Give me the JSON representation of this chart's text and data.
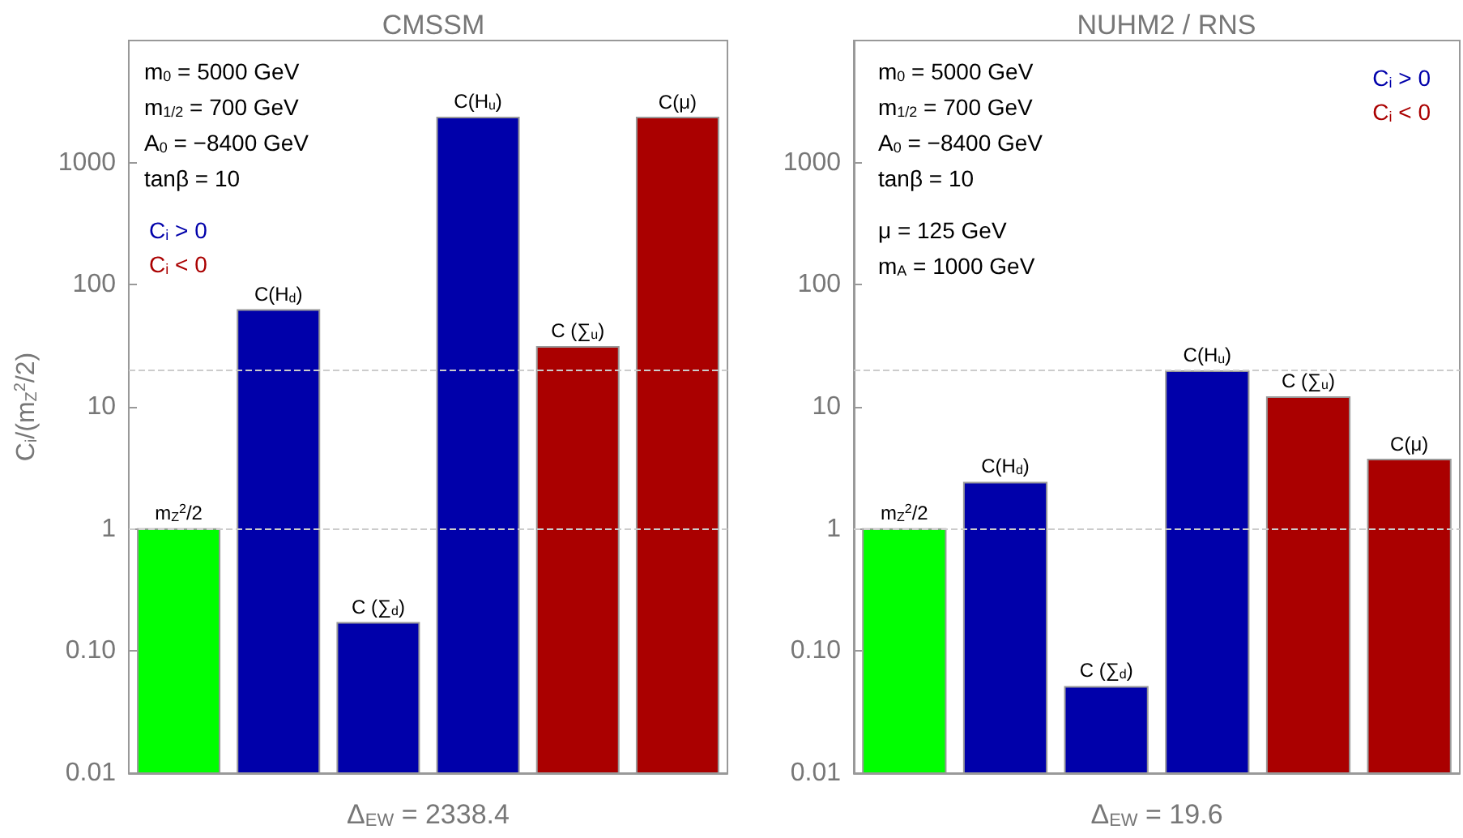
{
  "chart_data": [
    {
      "type": "bar",
      "title": "CMSSM",
      "xlabel": "Δ$_{EW}$ = 2338.4",
      "ylabel": "C$_{i}$/(m$_{Z}$$^{2}$/2)",
      "categories": [
        "m$_{Z}$$^{2}$/2",
        "C(H$_{d}$)",
        "C (∑$_{d}$)",
        "C(H$_{u}$)",
        "C (∑$_{u}$)",
        "C(μ)"
      ],
      "series": [
        {
          "color": "#00ff00",
          "values": [
            1,
            null,
            null,
            null,
            null,
            null
          ]
        },
        {
          "name": "C$_{i}$ > 0",
          "color": "#0000aa",
          "values": [
            null,
            62,
            0.17,
            2338,
            null,
            null
          ]
        },
        {
          "name": "C$_{i}$ < 0",
          "color": "#aa0000",
          "values": [
            null,
            null,
            null,
            null,
            31,
            2338
          ]
        }
      ],
      "log": "y",
      "ylim": [
        0.01,
        10000
      ],
      "yticks": [
        0.01,
        {
          "value": 0.1,
          "label": "0.10"
        },
        1,
        10,
        100,
        1000
      ],
      "tick_labels": "y",
      "ref_lines": [
        {
          "axis": "y",
          "value": 20,
          "line_style": "dashed",
          "color": "#cccccc"
        },
        {
          "axis": "y",
          "value": 1,
          "line_style": "dashed",
          "color": "#cccccc"
        }
      ],
      "annotations": [
        "m$_{0}$ = 5000 GeV",
        "m$_{1/2}$ = 700 GeV",
        "A$_{0}$ = −8400 GeV",
        "tanβ = 10"
      ]
    },
    {
      "type": "bar",
      "title": "NUHM2 / RNS",
      "xlabel": "Δ$_{EW}$ = 19.6",
      "categories": [
        "m$_{Z}$$^{2}$/2",
        "C(H$_{d}$)",
        "C (∑$_{d}$)",
        "C(H$_{u}$)",
        "C (∑$_{u}$)",
        "C(μ)"
      ],
      "series": [
        {
          "color": "#00ff00",
          "values": [
            1,
            null,
            null,
            null,
            null,
            null
          ]
        },
        {
          "name": "C$_{i}$ > 0",
          "color": "#0000aa",
          "values": [
            null,
            2.4,
            0.051,
            19.6,
            null,
            null
          ]
        },
        {
          "name": "C$_{i}$ < 0",
          "color": "#aa0000",
          "values": [
            null,
            null,
            null,
            null,
            12,
            3.7
          ]
        }
      ],
      "log": "y",
      "ylim": [
        0.01,
        10000
      ],
      "yticks": [
        0.01,
        {
          "value": 0.1,
          "label": "0.10"
        },
        1,
        10,
        100,
        1000
      ],
      "tick_labels": "y",
      "ref_lines": [
        {
          "axis": "y",
          "value": 20,
          "line_style": "dashed",
          "color": "#cccccc"
        },
        {
          "axis": "y",
          "value": 1,
          "line_style": "dashed",
          "color": "#cccccc"
        }
      ],
      "annotations": [
        "m$_{0}$ = 5000 GeV",
        "m$_{1/2}$ = 700 GeV",
        "A$_{0}$ = −8400 GeV",
        "tanβ = 10",
        "μ = 125 GeV",
        "m$_{A}$ = 1000 GeV"
      ]
    }
  ]
}
